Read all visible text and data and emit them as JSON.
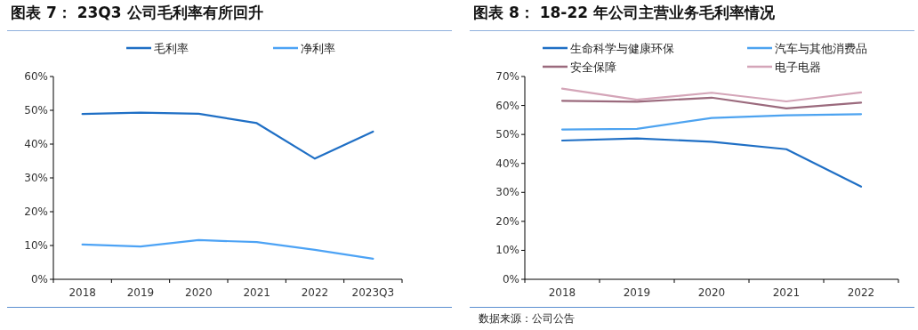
{
  "chart_data": [
    {
      "type": "line",
      "title": "图表 7：  23Q3 公司毛利率有所回升",
      "categories": [
        "2018",
        "2019",
        "2020",
        "2021",
        "2022",
        "2023Q3"
      ],
      "series": [
        {
          "name": "毛利率",
          "color": "#1f6fc5",
          "values": [
            48.9,
            49.3,
            49.0,
            46.2,
            35.7,
            43.7
          ]
        },
        {
          "name": "净利率",
          "color": "#4da3f5",
          "values": [
            10.3,
            9.7,
            11.6,
            11.0,
            8.7,
            6.1
          ]
        }
      ],
      "ylim": [
        0,
        60
      ],
      "yticks": [
        {
          "value": 0,
          "label": "0%"
        },
        {
          "value": 10,
          "label": "10%"
        },
        {
          "value": 20,
          "label": "20%"
        },
        {
          "value": 30,
          "label": "30%"
        },
        {
          "value": 40,
          "label": "40%"
        },
        {
          "value": 50,
          "label": "50%"
        },
        {
          "value": 60,
          "label": "60%"
        }
      ],
      "legend": "top",
      "grid": false
    },
    {
      "type": "line",
      "title": "图表 8：  18-22 年公司主营业务毛利率情况",
      "categories": [
        "2018",
        "2019",
        "2020",
        "2021",
        "2022"
      ],
      "series": [
        {
          "name": "生命科学与健康环保",
          "color": "#1f6fc5",
          "values": [
            47.9,
            48.6,
            47.5,
            44.9,
            32.0
          ]
        },
        {
          "name": "汽车与其他消费品",
          "color": "#4da3f0",
          "values": [
            51.7,
            51.9,
            55.7,
            56.6,
            57.0
          ]
        },
        {
          "name": "安全保障",
          "color": "#9b6a7d",
          "values": [
            61.6,
            61.3,
            62.7,
            59.0,
            61.0
          ]
        },
        {
          "name": "电子电器",
          "color": "#d4a5b8",
          "values": [
            65.8,
            62.0,
            64.4,
            61.4,
            64.5
          ]
        }
      ],
      "ylim": [
        0,
        70
      ],
      "yticks": [
        {
          "value": 0,
          "label": "0%"
        },
        {
          "value": 10,
          "label": "10%"
        },
        {
          "value": 20,
          "label": "20%"
        },
        {
          "value": 30,
          "label": "30%"
        },
        {
          "value": 40,
          "label": "40%"
        },
        {
          "value": 50,
          "label": "50%"
        },
        {
          "value": 60,
          "label": "60%"
        },
        {
          "value": 70,
          "label": "70%"
        }
      ],
      "legend": "top",
      "grid": false,
      "annotations": [
        "数据来源：公司公告"
      ]
    }
  ]
}
